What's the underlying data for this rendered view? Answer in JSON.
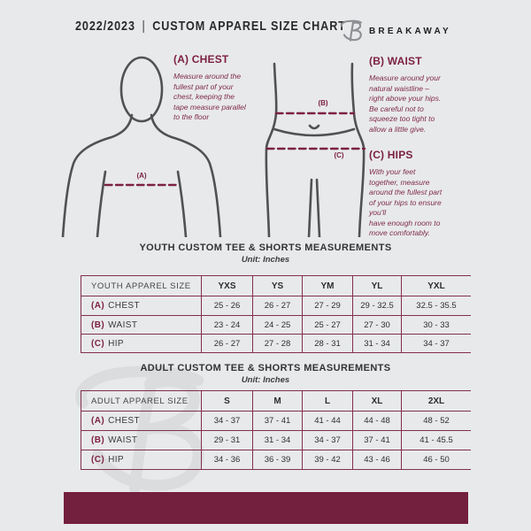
{
  "colors": {
    "background": "#e8e9eb",
    "accent": "#7c2142",
    "footer_bar": "#731f3e",
    "table_line": "#82304e",
    "text_dark": "#2e2e30",
    "figure_stroke": "#515154",
    "brand_gray": "#8e8e93",
    "watermark_gray": "#d9dadc"
  },
  "header": {
    "year": "2022/2023",
    "separator": "|",
    "title": "CUSTOM APPAREL SIZE CHART",
    "brand": "BREAKAWAY",
    "logo_icon": "breakaway-b-logo"
  },
  "guide": {
    "chest": {
      "heading": "(A) CHEST",
      "marker": "(A)",
      "instructions": "Measure around the\nfullest part of your\nchest, keeping the\ntape measure parallel\nto the floor"
    },
    "waist": {
      "heading": "(B) WAIST",
      "marker": "(B)",
      "instructions": "Measure around your\nnatural waistline –\nright above your hips.\nBe careful not to\nsqueeze too tight to\nallow a little give."
    },
    "hips": {
      "heading": "(C) HIPS",
      "marker": "(C)",
      "instructions": "With your feet\ntogether, measure\naround the fullest part\nof your hips to ensure\nyou'll\nhave enough room to\nmove comfortably."
    }
  },
  "youth_section": {
    "title": "YOUTH CUSTOM TEE & SHORTS MEASUREMENTS",
    "unit": "Unit: Inches"
  },
  "adult_section": {
    "title": "ADULT CUSTOM TEE & SHORTS MEASUREMENTS",
    "unit": "Unit: Inches"
  },
  "youth_table": {
    "header": [
      "YOUTH APPAREL SIZE",
      "YXS",
      "YS",
      "YM",
      "YL",
      "YXL"
    ],
    "rows": [
      {
        "prefix": "(A)",
        "label": "CHEST",
        "values": [
          "25 - 26",
          "26 - 27",
          "27 - 29",
          "29 - 32.5",
          "32.5 - 35.5"
        ]
      },
      {
        "prefix": "(B)",
        "label": "WAIST",
        "values": [
          "23 - 24",
          "24 - 25",
          "25 - 27",
          "27 - 30",
          "30 - 33"
        ]
      },
      {
        "prefix": "(C)",
        "label": "HIP",
        "values": [
          "26 - 27",
          "27 - 28",
          "28 - 31",
          "31 - 34",
          "34 - 37"
        ]
      }
    ]
  },
  "adult_table": {
    "header": [
      "ADULT APPAREL SIZE",
      "S",
      "M",
      "L",
      "XL",
      "2XL"
    ],
    "rows": [
      {
        "prefix": "(A)",
        "label": "CHEST",
        "values": [
          "34 - 37",
          "37 - 41",
          "41 - 44",
          "44 - 48",
          "48 - 52"
        ]
      },
      {
        "prefix": "(B)",
        "label": "WAIST",
        "values": [
          "29 - 31",
          "31 - 34",
          "34 - 37",
          "37 - 41",
          "41 - 45.5"
        ]
      },
      {
        "prefix": "(C)",
        "label": "HIP",
        "values": [
          "34 - 36",
          "36 - 39",
          "39 - 42",
          "43 - 46",
          "46 - 50"
        ]
      }
    ]
  }
}
